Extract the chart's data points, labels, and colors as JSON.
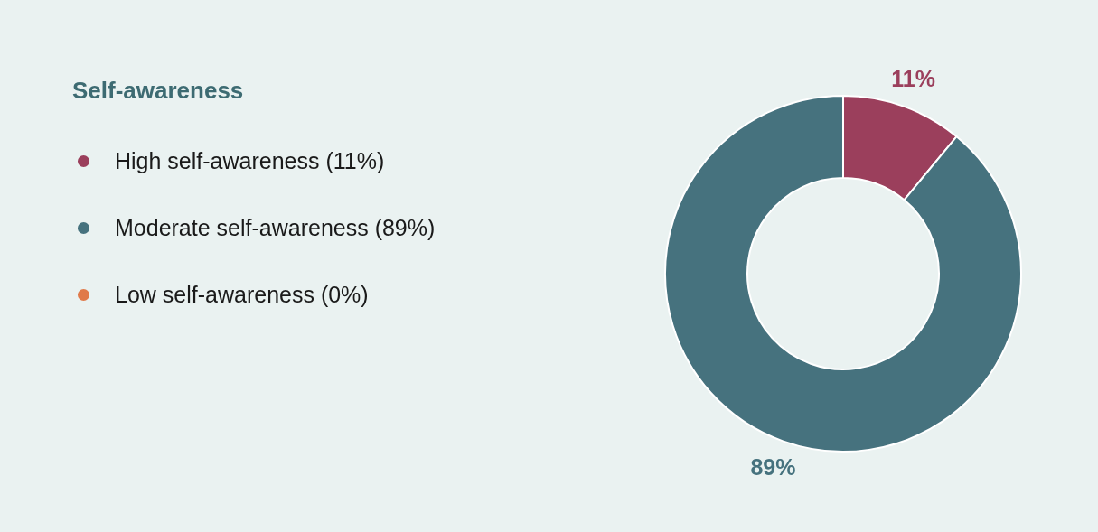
{
  "chart_data": {
    "type": "donut",
    "title": "Self-awareness",
    "categories": [
      "High self-awareness (11%)",
      "Moderate self-awareness (89%)",
      "Low self-awareness (0%)"
    ],
    "values": [
      11,
      89,
      0
    ],
    "colors": [
      "#9b3f5c",
      "#46727e",
      "#e07a4a"
    ],
    "value_labels": [
      "11%",
      "89%",
      null
    ],
    "legend": "left"
  }
}
